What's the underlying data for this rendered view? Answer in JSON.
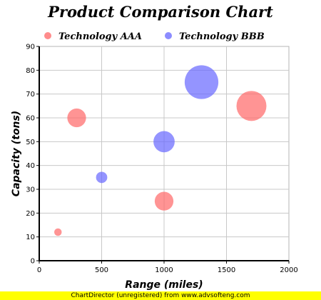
{
  "chart_data": {
    "type": "bubble",
    "title": "Product Comparison Chart",
    "xlabel": "Range (miles)",
    "ylabel": "Capacity (tons)",
    "xlim": [
      0,
      2000
    ],
    "ylim": [
      0,
      90
    ],
    "x_ticks": [
      "0",
      "500",
      "1000",
      "1500",
      "2000"
    ],
    "y_ticks": [
      "0",
      "10",
      "20",
      "30",
      "40",
      "50",
      "60",
      "70",
      "80",
      "90"
    ],
    "grid": true,
    "legend_position": "top",
    "series": [
      {
        "name": "Technology AAA",
        "color": "#ff6666",
        "points": [
          {
            "x": 150,
            "y": 12,
            "size": 60
          },
          {
            "x": 300,
            "y": 60,
            "size": 150
          },
          {
            "x": 1000,
            "y": 25,
            "size": 150
          },
          {
            "x": 1700,
            "y": 65,
            "size": 240
          }
        ]
      },
      {
        "name": "Technology BBB",
        "color": "#6666ff",
        "points": [
          {
            "x": 500,
            "y": 35,
            "size": 90
          },
          {
            "x": 1000,
            "y": 50,
            "size": 170
          },
          {
            "x": 1300,
            "y": 75,
            "size": 270
          }
        ]
      }
    ]
  },
  "footer": "ChartDirector (unregistered) from www.advsofteng.com"
}
